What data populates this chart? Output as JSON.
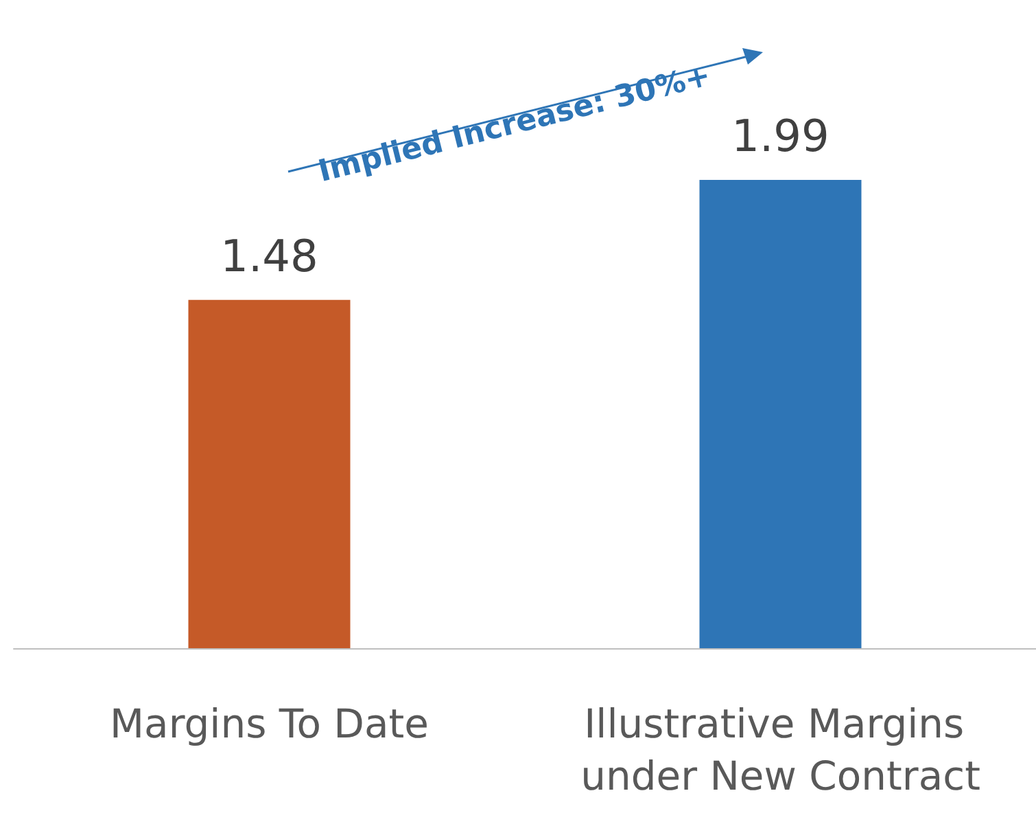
{
  "chart_data": {
    "type": "bar",
    "categories": [
      "Margins To Date",
      "Illustrative Margins under New Contract"
    ],
    "values": [
      1.48,
      1.99
    ],
    "colors": [
      "#c55a28",
      "#2e75b6"
    ],
    "data_labels": true,
    "annotations": [
      "Implied Increase: 30%+"
    ]
  }
}
